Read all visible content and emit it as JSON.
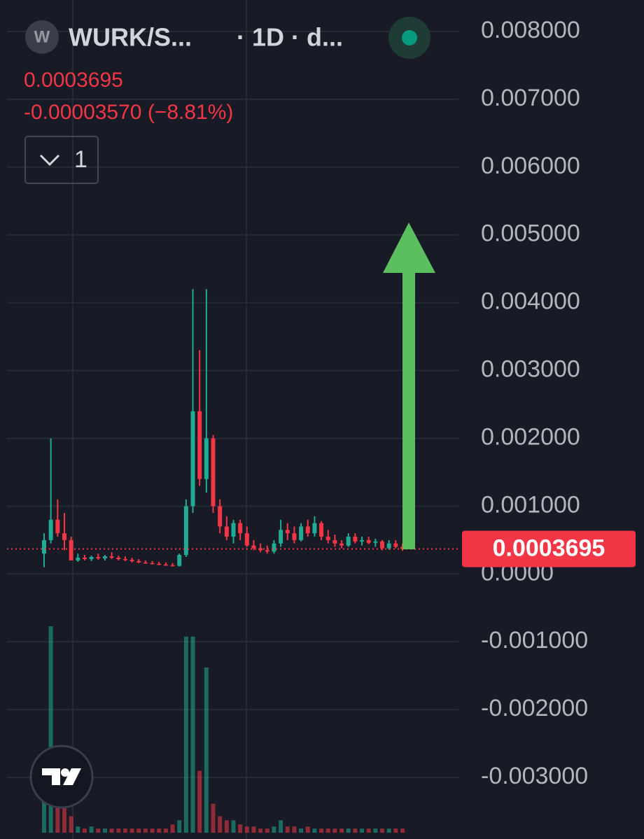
{
  "chart_data": {
    "type": "candlestick",
    "logo_letter": "W",
    "title": "WURK/S...",
    "interval": "· 1D · d...",
    "last_price": 0.0003695,
    "change": "-0.00003570 (−8.81%)",
    "indicators_count": "1",
    "up_color": "#22ab94",
    "down_color": "#f23645",
    "grid": true,
    "ylim": [
      -0.0038,
      0.0084
    ],
    "yticks": [
      {
        "value": 0.008,
        "label": "0.008000"
      },
      {
        "value": 0.007,
        "label": "0.007000"
      },
      {
        "value": 0.006,
        "label": "0.006000"
      },
      {
        "value": 0.005,
        "label": "0.005000"
      },
      {
        "value": 0.004,
        "label": "0.004000"
      },
      {
        "value": 0.003,
        "label": "0.003000"
      },
      {
        "value": 0.002,
        "label": "0.002000"
      },
      {
        "value": 0.001,
        "label": "0.001000"
      },
      {
        "value": 0,
        "label": "0.0000"
      },
      {
        "value": -0.001,
        "label": "-0.001000"
      },
      {
        "value": -0.002,
        "label": "-0.002000"
      },
      {
        "value": -0.003,
        "label": "-0.003000"
      }
    ],
    "open": [
      0.0003,
      0.0005,
      0.0008,
      0.0006,
      0.0005,
      0.0002,
      0.00024,
      0.00022,
      0.00025,
      0.00023,
      0.00026,
      0.00024,
      0.00022,
      0.00021,
      0.00019,
      0.00017,
      0.00016,
      0.00015,
      0.00014,
      0.00013,
      0.00012,
      0.00028,
      0.001,
      0.0024,
      0.0014,
      0.002,
      0.001,
      0.0007,
      0.00055,
      0.00075,
      0.0006,
      0.00042,
      0.00038,
      0.00035,
      0.00033,
      0.00045,
      0.00065,
      0.0006,
      0.0005,
      0.0007,
      0.0006,
      0.00075,
      0.00055,
      0.0005,
      0.00045,
      0.00042,
      0.00055,
      0.00048,
      0.0005,
      0.00046,
      0.00048,
      0.00038,
      0.00045,
      0.0004
    ],
    "high": [
      0.0006,
      0.002,
      0.0011,
      0.0009,
      0.00055,
      0.0003,
      0.00028,
      0.00027,
      0.0003,
      0.00028,
      0.00032,
      0.00027,
      0.00026,
      0.00024,
      0.00022,
      0.0002,
      0.00019,
      0.00018,
      0.00017,
      0.00016,
      0.0003,
      0.0011,
      0.0042,
      0.0033,
      0.0042,
      0.00205,
      0.0011,
      0.00085,
      0.0008,
      0.0008,
      0.0007,
      0.0005,
      0.00045,
      0.00042,
      0.0005,
      0.0008,
      0.00075,
      0.0007,
      0.00075,
      0.0008,
      0.00085,
      0.00078,
      0.00065,
      0.00058,
      0.0005,
      0.0006,
      0.0006,
      0.00055,
      0.00055,
      0.00052,
      0.0005,
      0.0005,
      0.0005,
      0.00045
    ],
    "low": [
      0.0001,
      0.00045,
      0.00055,
      0.00035,
      0.0002,
      0.00018,
      0.0002,
      0.00019,
      0.00021,
      0.0002,
      0.00022,
      0.0002,
      0.00019,
      0.00017,
      0.00016,
      0.00015,
      0.00014,
      0.00013,
      0.00012,
      0.00011,
      0.00011,
      0.00025,
      0.0009,
      0.0013,
      0.0012,
      0.0009,
      0.0006,
      0.0005,
      0.00045,
      0.0005,
      0.0004,
      0.00035,
      0.00032,
      0.0003,
      0.0003,
      0.0004,
      0.0005,
      0.00045,
      0.00048,
      0.00055,
      0.00055,
      0.0005,
      0.00045,
      0.0004,
      0.00038,
      0.0004,
      0.00045,
      0.00042,
      0.00044,
      0.0004,
      0.00035,
      0.00036,
      0.00038,
      0.00034
    ],
    "close": [
      0.0005,
      0.0008,
      0.0006,
      0.0005,
      0.0002,
      0.00024,
      0.00022,
      0.00025,
      0.00023,
      0.00026,
      0.00024,
      0.00022,
      0.00021,
      0.00019,
      0.00017,
      0.00016,
      0.00015,
      0.00014,
      0.00013,
      0.00012,
      0.00028,
      0.001,
      0.0024,
      0.0014,
      0.002,
      0.001,
      0.0007,
      0.00055,
      0.00075,
      0.0006,
      0.00042,
      0.00038,
      0.00035,
      0.00033,
      0.00045,
      0.00065,
      0.0006,
      0.0005,
      0.0007,
      0.0006,
      0.00075,
      0.00055,
      0.0005,
      0.00045,
      0.00042,
      0.00055,
      0.00048,
      0.0005,
      0.00046,
      0.00048,
      0.00038,
      0.00045,
      0.0004,
      0.00037
    ],
    "volume_ylim": [
      0,
      100
    ],
    "volume": [
      20,
      100,
      30,
      12,
      8,
      3,
      2,
      3,
      2,
      2,
      2,
      2,
      2,
      2,
      2,
      2,
      2,
      2,
      2,
      4,
      6,
      95,
      95,
      30,
      80,
      14,
      8,
      6,
      6,
      4,
      3,
      3,
      2,
      2,
      3,
      6,
      3,
      3,
      2,
      3,
      2,
      2,
      2,
      2,
      2,
      2,
      2,
      2,
      2,
      2,
      2,
      2,
      2,
      2
    ]
  }
}
